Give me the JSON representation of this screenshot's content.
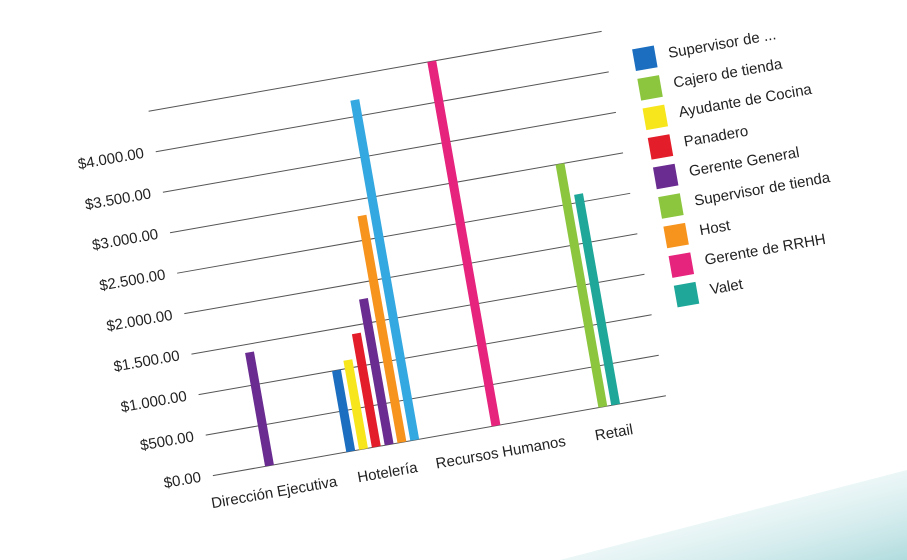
{
  "chart_data": {
    "type": "bar",
    "categories": [
      "Dirección Ejecutiva",
      "Hotelería",
      "Recursos Humanos",
      "Retail"
    ],
    "series": [
      {
        "name": "Supervisor de ...",
        "color": "#1c6fc0",
        "values": [
          null,
          1000,
          null,
          null
        ]
      },
      {
        "name": "Cajero de tienda",
        "color": "#8cc63f",
        "values": [
          null,
          null,
          null,
          3000
        ]
      },
      {
        "name": "Ayudante de Cocina",
        "color": "#f7e61b",
        "values": [
          null,
          1100,
          null,
          null
        ]
      },
      {
        "name": "Panadero",
        "color": "#e31e2a",
        "values": [
          null,
          1400,
          null,
          null
        ]
      },
      {
        "name": "Gerente General",
        "color": "#6a2c91",
        "values": [
          1400,
          1800,
          null,
          null
        ]
      },
      {
        "name": "Supervisor  de tienda",
        "color": "#8cc63f",
        "values": [
          null,
          null,
          null,
          null
        ]
      },
      {
        "name": "Host",
        "color": "#f7941d",
        "values": [
          null,
          2800,
          null,
          null
        ]
      },
      {
        "name": "Gerente de RRHH",
        "color": "#e6237d",
        "values": [
          null,
          null,
          4500,
          null
        ]
      },
      {
        "name": "Valet",
        "color": "#1fa89a",
        "values": [
          null,
          null,
          null,
          2600
        ]
      },
      {
        "color": "#34a8e0",
        "values": [
          null,
          4200,
          null,
          null
        ]
      }
    ],
    "ylim": [
      0,
      4500
    ],
    "yticks": [
      {
        "value": 0,
        "label": "$0.00"
      },
      {
        "value": 500,
        "label": "$500.00"
      },
      {
        "value": 1000,
        "label": "$1.000.00"
      },
      {
        "value": 1500,
        "label": "$1.500.00"
      },
      {
        "value": 2000,
        "label": "$2.000.00"
      },
      {
        "value": 2500,
        "label": "$2.500.00"
      },
      {
        "value": 3000,
        "label": "$3.000.00"
      },
      {
        "value": 3500,
        "label": "$3.500.00"
      },
      {
        "value": 4000,
        "label": "$4.000.00"
      }
    ],
    "grid": true
  }
}
